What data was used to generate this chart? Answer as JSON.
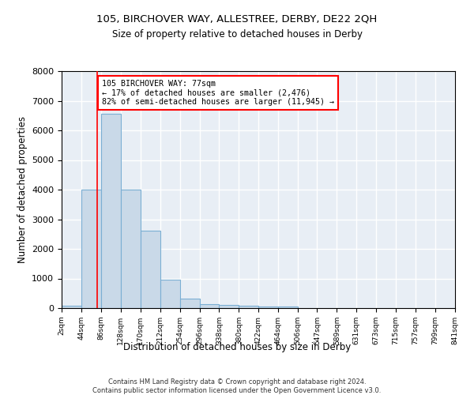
{
  "title": "105, BIRCHOVER WAY, ALLESTREE, DERBY, DE22 2QH",
  "subtitle": "Size of property relative to detached houses in Derby",
  "xlabel": "Distribution of detached houses by size in Derby",
  "ylabel": "Number of detached properties",
  "bar_color": "#c9d9e8",
  "bar_edge_color": "#7bafd4",
  "vline_color": "red",
  "vline_x": 77,
  "annotation_text": "105 BIRCHOVER WAY: 77sqm\n← 17% of detached houses are smaller (2,476)\n82% of semi-detached houses are larger (11,945) →",
  "annotation_box_color": "white",
  "annotation_box_edge_color": "red",
  "bin_edges": [
    2,
    44,
    86,
    128,
    170,
    212,
    254,
    296,
    338,
    380,
    422,
    464,
    506,
    547,
    589,
    631,
    673,
    715,
    757,
    799,
    841
  ],
  "bar_heights": [
    80,
    4000,
    6550,
    4000,
    2620,
    950,
    320,
    130,
    120,
    70,
    50,
    50,
    0,
    0,
    0,
    0,
    0,
    0,
    0,
    0
  ],
  "ylim": [
    0,
    8000
  ],
  "yticks": [
    0,
    1000,
    2000,
    3000,
    4000,
    5000,
    6000,
    7000,
    8000
  ],
  "background_color": "#e8eef5",
  "grid_color": "white",
  "footer_line1": "Contains HM Land Registry data © Crown copyright and database right 2024.",
  "footer_line2": "Contains public sector information licensed under the Open Government Licence v3.0."
}
